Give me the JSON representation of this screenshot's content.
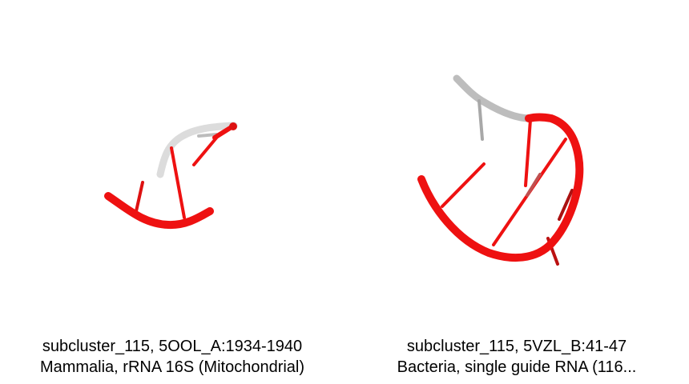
{
  "panels": [
    {
      "line1": "subcluster_115, 5OOL_A:1934-1940",
      "line2": "Mammalia, rRNA 16S (Mitochondrial)"
    },
    {
      "line1": "subcluster_115, 5VZL_B:41-47",
      "line2": "Bacteria, single guide RNA (116..."
    }
  ],
  "colors": {
    "backbone_highlight": "#ee1111",
    "backbone_context": "#c8c8c8",
    "background": "#ffffff"
  }
}
